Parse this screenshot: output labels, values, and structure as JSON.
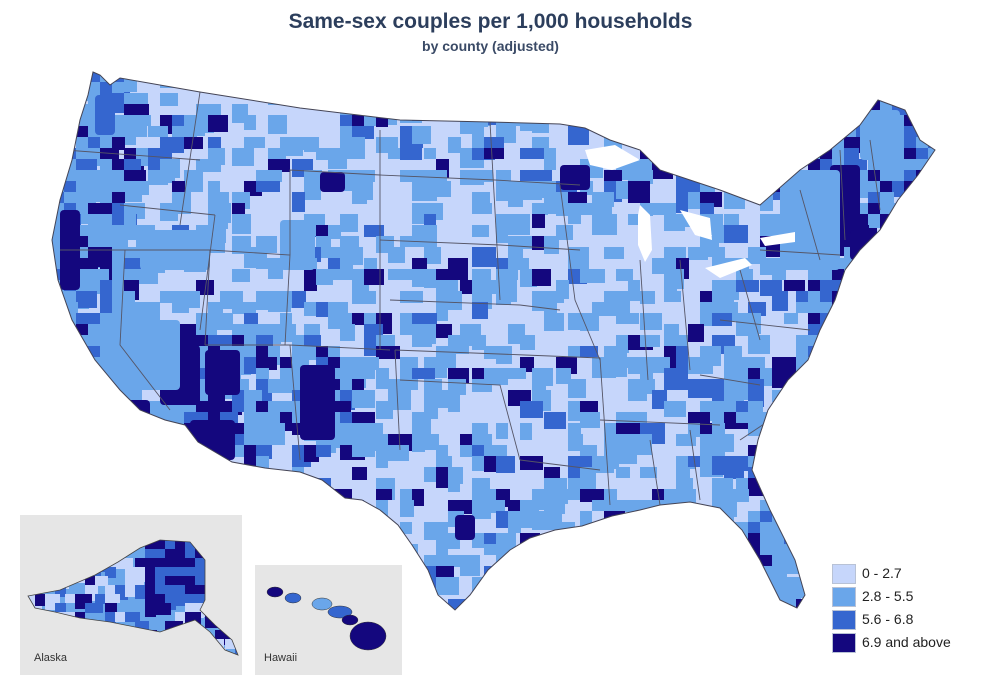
{
  "title": "Same-sex couples per 1,000 households",
  "subtitle": "by county (adjusted)",
  "colors": {
    "c0": "#c6d6fb",
    "c1": "#6aa6ea",
    "c2": "#3566cf",
    "c3": "#14077e",
    "border": "#555566"
  },
  "legend": [
    {
      "label": "0 - 2.7",
      "color": "#c6d6fb"
    },
    {
      "label": "2.8 - 5.5",
      "color": "#6aa6ea"
    },
    {
      "label": "5.6 - 6.8",
      "color": "#3566cf"
    },
    {
      "label": "6.9 and above",
      "color": "#14077e"
    }
  ],
  "insets": {
    "alaska_label": "Alaska",
    "hawaii_label": "Hawaii"
  }
}
